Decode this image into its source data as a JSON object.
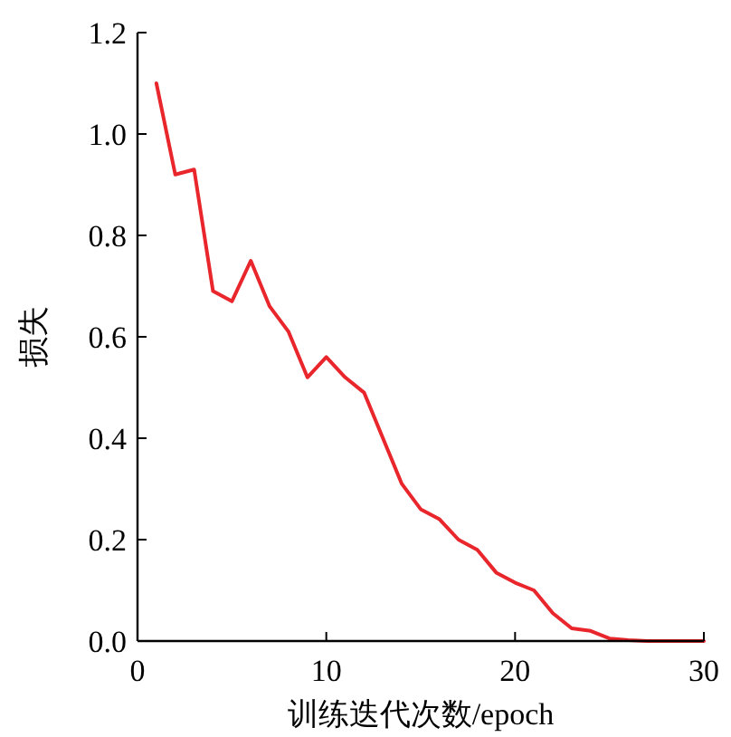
{
  "chart_data": {
    "type": "line",
    "xlabel": "训练迭代次数/epoch",
    "ylabel": "损失",
    "x": [
      1,
      2,
      3,
      4,
      5,
      6,
      7,
      8,
      9,
      10,
      11,
      12,
      13,
      14,
      15,
      16,
      17,
      18,
      19,
      20,
      21,
      22,
      23,
      24,
      25,
      26,
      27,
      28,
      29,
      30
    ],
    "series": [
      {
        "color": "#e8262b",
        "values": [
          1.1,
          0.92,
          0.93,
          0.69,
          0.67,
          0.75,
          0.66,
          0.61,
          0.52,
          0.56,
          0.52,
          0.49,
          0.4,
          0.31,
          0.26,
          0.24,
          0.2,
          0.18,
          0.135,
          0.115,
          0.1,
          0.055,
          0.025,
          0.02,
          0.005,
          0.002,
          0,
          0,
          0,
          0
        ]
      }
    ],
    "xlim": [
      0,
      30
    ],
    "xticks": [
      0,
      10,
      20,
      30
    ],
    "ylim": [
      0,
      1.2
    ],
    "yticks": [
      {
        "value": 0,
        "label": "0.0"
      },
      {
        "value": 0.2,
        "label": "0.2"
      },
      {
        "value": 0.4,
        "label": "0.4"
      },
      {
        "value": 0.6,
        "label": "0.6"
      },
      {
        "value": 0.8,
        "label": "0.8"
      },
      {
        "value": 1.0,
        "label": "1.0"
      },
      {
        "value": 1.2,
        "label": "1.2"
      }
    ],
    "grid": false,
    "marker": "none",
    "line_style": "solid"
  }
}
